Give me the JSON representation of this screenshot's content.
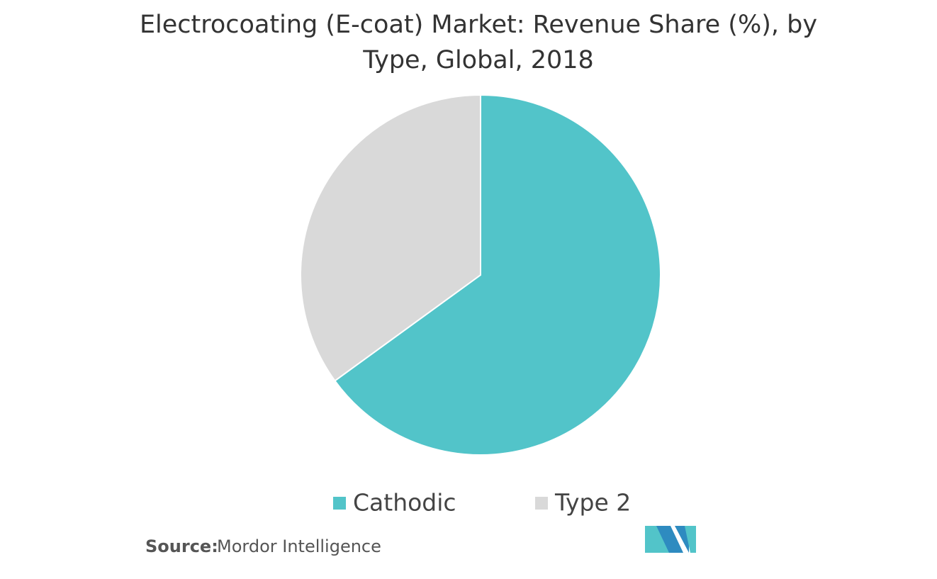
{
  "chart_data": {
    "type": "pie",
    "title": "Electrocoating (E-coat) Market: Revenue Share (%), by Type, Global, 2018",
    "categories": [
      "Cathodic",
      "Type 2"
    ],
    "values": [
      65,
      35
    ],
    "colors": [
      "#52c4c9",
      "#d9d9d9"
    ],
    "source_label": "Source:",
    "source": "Mordor Intelligence"
  }
}
